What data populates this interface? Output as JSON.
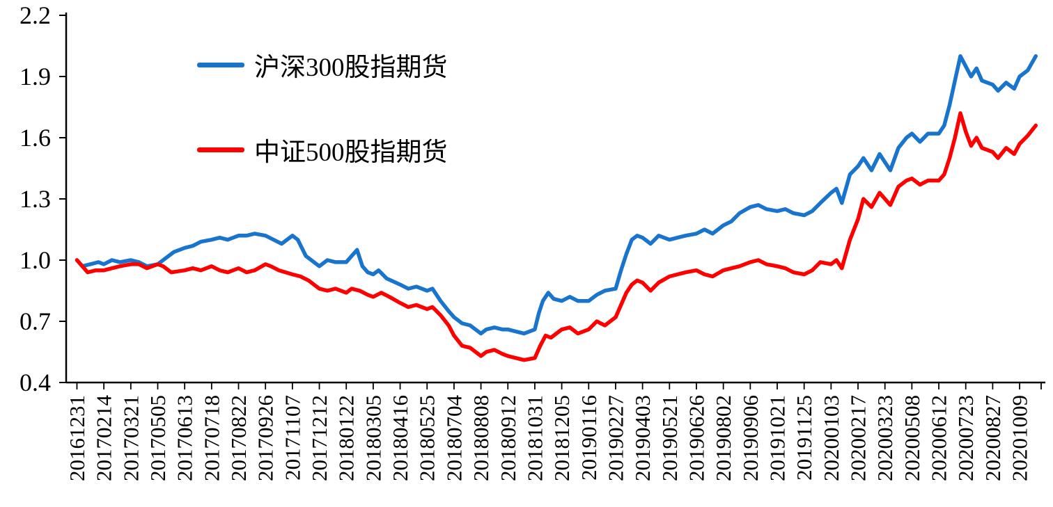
{
  "chart_data": {
    "type": "line",
    "title": "",
    "xlabel": "",
    "ylabel": "",
    "ylim": [
      0.4,
      2.2
    ],
    "x_range": [
      -0.4,
      35.8
    ],
    "x_unit": "category_index",
    "grid": false,
    "legend_position": "top-left-inside",
    "axis_color": "#000000",
    "background": "#FFFFFF",
    "yticks": [
      2.2,
      1.9,
      1.6,
      1.3,
      1.0,
      0.7,
      0.4
    ],
    "categories": [
      "20161231",
      "20170214",
      "20170321",
      "20170505",
      "20170613",
      "20170718",
      "20170822",
      "20170926",
      "20171107",
      "20171212",
      "20180122",
      "20180305",
      "20180416",
      "20180525",
      "20180704",
      "20180808",
      "20180912",
      "20181031",
      "20181205",
      "20190116",
      "20190227",
      "20190403",
      "20190521",
      "20190626",
      "20190802",
      "20190906",
      "20191021",
      "20191125",
      "20200103",
      "20200217",
      "20200323",
      "20200508",
      "20200612",
      "20200723",
      "20200827",
      "20201009"
    ],
    "series": [
      {
        "name": "沪深300股指期货",
        "color": "#1874CD",
        "points": [
          [
            0,
            1.0
          ],
          [
            0.2,
            0.97
          ],
          [
            0.5,
            0.98
          ],
          [
            0.8,
            0.99
          ],
          [
            1,
            0.98
          ],
          [
            1.3,
            1.0
          ],
          [
            1.6,
            0.99
          ],
          [
            2,
            1.0
          ],
          [
            2.3,
            0.99
          ],
          [
            2.6,
            0.97
          ],
          [
            3,
            0.98
          ],
          [
            3.3,
            1.01
          ],
          [
            3.6,
            1.04
          ],
          [
            4,
            1.06
          ],
          [
            4.3,
            1.07
          ],
          [
            4.6,
            1.09
          ],
          [
            5,
            1.1
          ],
          [
            5.3,
            1.11
          ],
          [
            5.6,
            1.1
          ],
          [
            6,
            1.12
          ],
          [
            6.3,
            1.12
          ],
          [
            6.6,
            1.13
          ],
          [
            7,
            1.12
          ],
          [
            7.3,
            1.1
          ],
          [
            7.6,
            1.08
          ],
          [
            8,
            1.12
          ],
          [
            8.2,
            1.1
          ],
          [
            8.5,
            1.02
          ],
          [
            8.8,
            0.99
          ],
          [
            9,
            0.97
          ],
          [
            9.3,
            1.0
          ],
          [
            9.6,
            0.99
          ],
          [
            10,
            0.99
          ],
          [
            10.2,
            1.02
          ],
          [
            10.4,
            1.05
          ],
          [
            10.6,
            0.97
          ],
          [
            10.8,
            0.94
          ],
          [
            11,
            0.93
          ],
          [
            11.2,
            0.95
          ],
          [
            11.5,
            0.91
          ],
          [
            12,
            0.88
          ],
          [
            12.3,
            0.86
          ],
          [
            12.6,
            0.87
          ],
          [
            13,
            0.85
          ],
          [
            13.2,
            0.86
          ],
          [
            13.5,
            0.8
          ],
          [
            13.8,
            0.75
          ],
          [
            14,
            0.72
          ],
          [
            14.3,
            0.69
          ],
          [
            14.6,
            0.68
          ],
          [
            15,
            0.64
          ],
          [
            15.2,
            0.66
          ],
          [
            15.5,
            0.67
          ],
          [
            15.8,
            0.66
          ],
          [
            16,
            0.66
          ],
          [
            16.3,
            0.65
          ],
          [
            16.6,
            0.64
          ],
          [
            17,
            0.66
          ],
          [
            17.15,
            0.74
          ],
          [
            17.3,
            0.8
          ],
          [
            17.5,
            0.84
          ],
          [
            17.7,
            0.81
          ],
          [
            18,
            0.8
          ],
          [
            18.3,
            0.82
          ],
          [
            18.6,
            0.8
          ],
          [
            19,
            0.8
          ],
          [
            19.3,
            0.83
          ],
          [
            19.6,
            0.85
          ],
          [
            20,
            0.86
          ],
          [
            20.2,
            0.95
          ],
          [
            20.4,
            1.03
          ],
          [
            20.6,
            1.1
          ],
          [
            20.8,
            1.12
          ],
          [
            21,
            1.11
          ],
          [
            21.3,
            1.08
          ],
          [
            21.6,
            1.12
          ],
          [
            22,
            1.1
          ],
          [
            22.3,
            1.11
          ],
          [
            22.6,
            1.12
          ],
          [
            23,
            1.13
          ],
          [
            23.3,
            1.15
          ],
          [
            23.6,
            1.13
          ],
          [
            24,
            1.17
          ],
          [
            24.3,
            1.19
          ],
          [
            24.6,
            1.23
          ],
          [
            25,
            1.26
          ],
          [
            25.3,
            1.27
          ],
          [
            25.6,
            1.25
          ],
          [
            26,
            1.24
          ],
          [
            26.3,
            1.25
          ],
          [
            26.6,
            1.23
          ],
          [
            27,
            1.22
          ],
          [
            27.3,
            1.24
          ],
          [
            27.6,
            1.28
          ],
          [
            28,
            1.33
          ],
          [
            28.2,
            1.35
          ],
          [
            28.4,
            1.28
          ],
          [
            28.7,
            1.42
          ],
          [
            29,
            1.46
          ],
          [
            29.2,
            1.5
          ],
          [
            29.5,
            1.44
          ],
          [
            29.8,
            1.52
          ],
          [
            30,
            1.48
          ],
          [
            30.2,
            1.44
          ],
          [
            30.5,
            1.55
          ],
          [
            30.8,
            1.6
          ],
          [
            31,
            1.62
          ],
          [
            31.3,
            1.58
          ],
          [
            31.6,
            1.62
          ],
          [
            32,
            1.62
          ],
          [
            32.2,
            1.66
          ],
          [
            32.4,
            1.76
          ],
          [
            32.6,
            1.88
          ],
          [
            32.8,
            2.0
          ],
          [
            33,
            1.95
          ],
          [
            33.2,
            1.9
          ],
          [
            33.4,
            1.94
          ],
          [
            33.6,
            1.88
          ],
          [
            34,
            1.86
          ],
          [
            34.2,
            1.83
          ],
          [
            34.5,
            1.87
          ],
          [
            34.8,
            1.84
          ],
          [
            35,
            1.9
          ],
          [
            35.3,
            1.93
          ],
          [
            35.6,
            2.0
          ]
        ]
      },
      {
        "name": "中证500股指期货",
        "color": "#FF0000",
        "points": [
          [
            0,
            1.0
          ],
          [
            0.2,
            0.97
          ],
          [
            0.4,
            0.94
          ],
          [
            0.7,
            0.95
          ],
          [
            1,
            0.95
          ],
          [
            1.3,
            0.96
          ],
          [
            1.6,
            0.97
          ],
          [
            2,
            0.98
          ],
          [
            2.3,
            0.98
          ],
          [
            2.6,
            0.96
          ],
          [
            3,
            0.98
          ],
          [
            3.2,
            0.97
          ],
          [
            3.5,
            0.94
          ],
          [
            4,
            0.95
          ],
          [
            4.3,
            0.96
          ],
          [
            4.6,
            0.95
          ],
          [
            5,
            0.97
          ],
          [
            5.3,
            0.95
          ],
          [
            5.6,
            0.94
          ],
          [
            6,
            0.96
          ],
          [
            6.3,
            0.94
          ],
          [
            6.6,
            0.95
          ],
          [
            7,
            0.98
          ],
          [
            7.2,
            0.97
          ],
          [
            7.5,
            0.95
          ],
          [
            8,
            0.93
          ],
          [
            8.3,
            0.92
          ],
          [
            8.6,
            0.9
          ],
          [
            9,
            0.86
          ],
          [
            9.3,
            0.85
          ],
          [
            9.6,
            0.86
          ],
          [
            10,
            0.84
          ],
          [
            10.2,
            0.86
          ],
          [
            10.5,
            0.85
          ],
          [
            10.8,
            0.83
          ],
          [
            11,
            0.82
          ],
          [
            11.3,
            0.84
          ],
          [
            11.6,
            0.82
          ],
          [
            12,
            0.79
          ],
          [
            12.3,
            0.77
          ],
          [
            12.6,
            0.78
          ],
          [
            13,
            0.76
          ],
          [
            13.2,
            0.77
          ],
          [
            13.5,
            0.73
          ],
          [
            13.8,
            0.68
          ],
          [
            14,
            0.63
          ],
          [
            14.3,
            0.58
          ],
          [
            14.6,
            0.57
          ],
          [
            15,
            0.53
          ],
          [
            15.2,
            0.55
          ],
          [
            15.5,
            0.56
          ],
          [
            15.8,
            0.54
          ],
          [
            16,
            0.53
          ],
          [
            16.3,
            0.52
          ],
          [
            16.6,
            0.51
          ],
          [
            17,
            0.52
          ],
          [
            17.2,
            0.58
          ],
          [
            17.4,
            0.63
          ],
          [
            17.6,
            0.62
          ],
          [
            18,
            0.66
          ],
          [
            18.3,
            0.67
          ],
          [
            18.6,
            0.64
          ],
          [
            19,
            0.66
          ],
          [
            19.3,
            0.7
          ],
          [
            19.6,
            0.68
          ],
          [
            20,
            0.72
          ],
          [
            20.2,
            0.78
          ],
          [
            20.4,
            0.84
          ],
          [
            20.6,
            0.88
          ],
          [
            20.8,
            0.9
          ],
          [
            21,
            0.89
          ],
          [
            21.3,
            0.85
          ],
          [
            21.6,
            0.89
          ],
          [
            22,
            0.92
          ],
          [
            22.3,
            0.93
          ],
          [
            22.6,
            0.94
          ],
          [
            23,
            0.95
          ],
          [
            23.3,
            0.93
          ],
          [
            23.6,
            0.92
          ],
          [
            24,
            0.95
          ],
          [
            24.3,
            0.96
          ],
          [
            24.6,
            0.97
          ],
          [
            25,
            0.99
          ],
          [
            25.3,
            1.0
          ],
          [
            25.6,
            0.98
          ],
          [
            26,
            0.97
          ],
          [
            26.3,
            0.96
          ],
          [
            26.6,
            0.94
          ],
          [
            27,
            0.93
          ],
          [
            27.3,
            0.95
          ],
          [
            27.6,
            0.99
          ],
          [
            28,
            0.98
          ],
          [
            28.2,
            1.0
          ],
          [
            28.4,
            0.96
          ],
          [
            28.7,
            1.1
          ],
          [
            29,
            1.2
          ],
          [
            29.2,
            1.3
          ],
          [
            29.5,
            1.26
          ],
          [
            29.8,
            1.33
          ],
          [
            30,
            1.3
          ],
          [
            30.2,
            1.27
          ],
          [
            30.5,
            1.36
          ],
          [
            30.8,
            1.39
          ],
          [
            31,
            1.4
          ],
          [
            31.3,
            1.37
          ],
          [
            31.6,
            1.39
          ],
          [
            32,
            1.39
          ],
          [
            32.2,
            1.42
          ],
          [
            32.4,
            1.5
          ],
          [
            32.6,
            1.6
          ],
          [
            32.8,
            1.72
          ],
          [
            33,
            1.63
          ],
          [
            33.2,
            1.56
          ],
          [
            33.4,
            1.6
          ],
          [
            33.6,
            1.55
          ],
          [
            34,
            1.53
          ],
          [
            34.2,
            1.5
          ],
          [
            34.5,
            1.55
          ],
          [
            34.8,
            1.52
          ],
          [
            35,
            1.57
          ],
          [
            35.3,
            1.61
          ],
          [
            35.6,
            1.66
          ]
        ]
      }
    ]
  }
}
